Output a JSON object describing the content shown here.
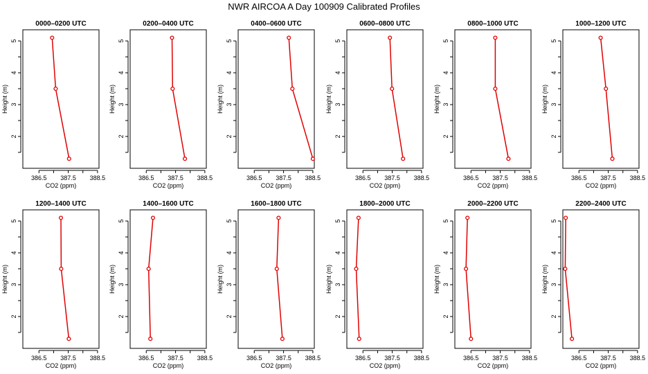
{
  "title": "NWR AIRCOA A  Day 100909  Calibrated Profiles",
  "colors": {
    "profile": "#e00000",
    "axis": "#000000"
  },
  "chart_data": {
    "type": "line",
    "xlabel": "CO2 (ppm)",
    "ylabel": "Height (m)",
    "xticks": [
      "386.5",
      "387.5",
      "388.5"
    ],
    "yticks": [
      "2",
      "3",
      "4",
      "5"
    ],
    "heights": [
      5.1,
      3.5,
      1.3
    ],
    "panels": [
      {
        "title": "0000–0200 UTC",
        "xlim": [
          385.95,
          388.55
        ],
        "values": [
          386.95,
          387.07,
          387.53
        ]
      },
      {
        "title": "0200–0400 UTC",
        "xlim": [
          385.95,
          388.55
        ],
        "values": [
          387.38,
          387.4,
          387.82
        ]
      },
      {
        "title": "0400–0600 UTC",
        "xlim": [
          385.95,
          388.55
        ],
        "values": [
          387.68,
          387.8,
          388.5
        ]
      },
      {
        "title": "0600–0800 UTC",
        "xlim": [
          385.95,
          388.55
        ],
        "values": [
          387.42,
          387.49,
          387.87
        ]
      },
      {
        "title": "0800–1000 UTC",
        "xlim": [
          385.95,
          388.55
        ],
        "values": [
          387.33,
          387.33,
          387.78
        ]
      },
      {
        "title": "1000–1200 UTC",
        "xlim": [
          385.95,
          388.55
        ],
        "values": [
          387.24,
          387.42,
          387.64
        ]
      },
      {
        "title": "1200–1400 UTC",
        "xlim": [
          385.95,
          388.55
        ],
        "values": [
          387.25,
          387.26,
          387.52
        ]
      },
      {
        "title": "1400–1600 UTC",
        "xlim": [
          385.95,
          388.55
        ],
        "values": [
          386.73,
          386.58,
          386.64
        ]
      },
      {
        "title": "1600–1800 UTC",
        "xlim": [
          385.95,
          388.55
        ],
        "values": [
          387.33,
          387.27,
          387.46
        ]
      },
      {
        "title": "1800–2000 UTC",
        "xlim": [
          385.95,
          388.55
        ],
        "values": [
          386.35,
          386.27,
          386.37
        ]
      },
      {
        "title": "2000–2200 UTC",
        "xlim": [
          385.95,
          388.55
        ],
        "values": [
          386.38,
          386.33,
          386.5
        ]
      },
      {
        "title": "2200–2400 UTC",
        "xlim": [
          385.95,
          388.55
        ],
        "values": [
          386.05,
          386.03,
          386.26
        ]
      }
    ]
  }
}
